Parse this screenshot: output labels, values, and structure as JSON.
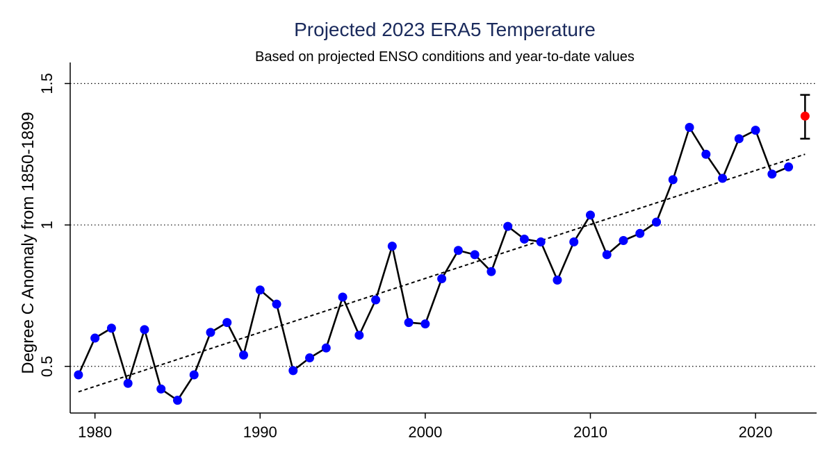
{
  "chart_data": {
    "type": "scatter",
    "title": "Projected 2023 ERA5 Temperature",
    "subtitle": "Based on projected ENSO conditions and year-to-date values",
    "xlabel": "",
    "ylabel": "Degree C Anomaly from 1850-1899",
    "xlim": [
      1978.5,
      2023.7
    ],
    "ylim": [
      0.335,
      1.55
    ],
    "x_ticks": [
      1980,
      1990,
      2000,
      2010,
      2020
    ],
    "y_ticks": [
      0.5,
      1,
      1.5
    ],
    "y_tick_labels": [
      "0.5",
      "1",
      "1.5"
    ],
    "grid": "horizontal dotted at y ticks",
    "series": [
      {
        "x": [
          1979,
          1980,
          1981,
          1982,
          1983,
          1984,
          1985,
          1986,
          1987,
          1988,
          1989,
          1990,
          1991,
          1992,
          1993,
          1994,
          1995,
          1996,
          1997,
          1998,
          1999,
          2000,
          2001,
          2002,
          2003,
          2004,
          2005,
          2006,
          2007,
          2008,
          2009,
          2010,
          2011,
          2012,
          2013,
          2014,
          2015,
          2016,
          2017,
          2018,
          2019,
          2020,
          2021,
          2022
        ],
        "y": [
          0.47,
          0.6,
          0.635,
          0.44,
          0.63,
          0.42,
          0.38,
          0.47,
          0.62,
          0.655,
          0.54,
          0.77,
          0.72,
          0.485,
          0.53,
          0.565,
          0.745,
          0.61,
          0.735,
          0.925,
          0.655,
          0.65,
          0.81,
          0.91,
          0.895,
          0.835,
          0.995,
          0.95,
          0.94,
          0.805,
          0.94,
          1.035,
          0.895,
          0.945,
          0.97,
          1.01,
          1.16,
          1.345,
          1.25,
          1.165,
          1.305,
          1.335,
          1.18,
          1.205
        ],
        "color": "#0000ff",
        "line_color": "#000000"
      }
    ],
    "trend": {
      "style": "dashed",
      "x": [
        1979,
        2023
      ],
      "y": [
        0.41,
        1.25
      ],
      "color": "#000000"
    },
    "projection": {
      "x": 2023,
      "y": 1.385,
      "low": 1.305,
      "high": 1.46,
      "color": "#ff0000"
    }
  }
}
